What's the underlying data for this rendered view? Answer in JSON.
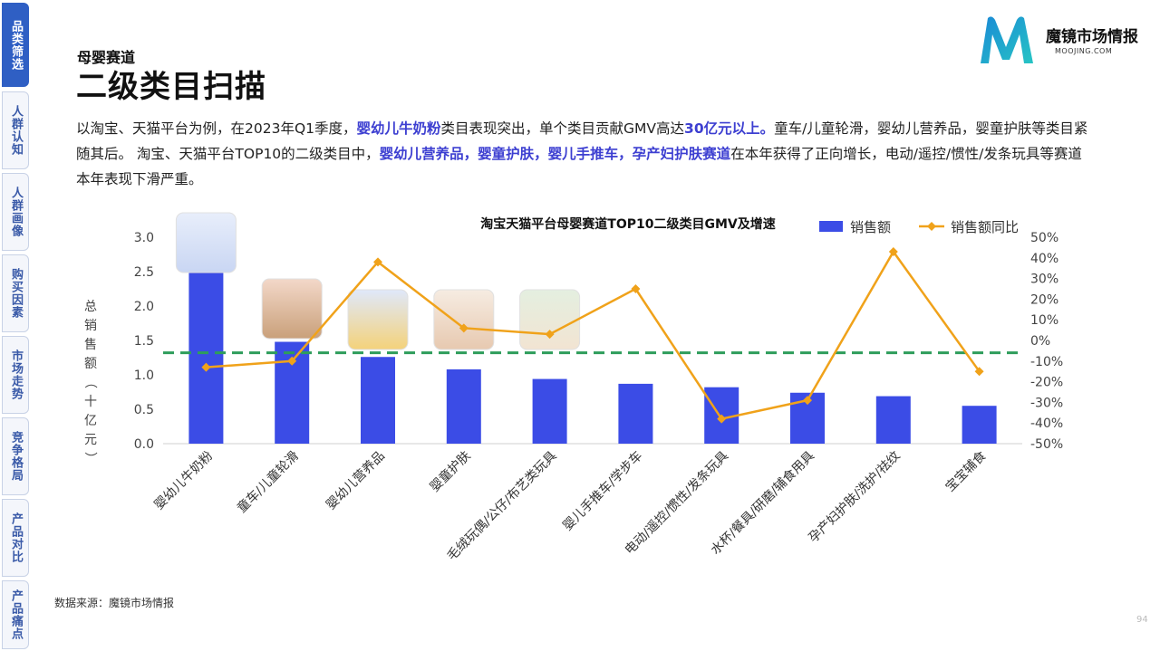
{
  "nav": {
    "items": [
      {
        "label": "品类筛选",
        "active": true
      },
      {
        "label": "人群认知",
        "active": false
      },
      {
        "label": "人群画像",
        "active": false
      },
      {
        "label": "购买因素",
        "active": false
      },
      {
        "label": "市场走势",
        "active": false
      },
      {
        "label": "竞争格局",
        "active": false
      },
      {
        "label": "产品对比",
        "active": false
      },
      {
        "label": "产品痛点",
        "active": false
      }
    ]
  },
  "header": {
    "section": "母婴赛道",
    "title": "二级类目扫描"
  },
  "logo": {
    "name": "魔镜市场情报",
    "sub": "MOOJING.COM",
    "colors": [
      "#1a9ad6",
      "#27c4c4"
    ]
  },
  "description": {
    "p1": "以淘宝、天猫平台为例，在2023年Q1季度，",
    "h1": "婴幼儿牛奶粉",
    "p2": "类目表现突出，单个类目贡献GMV高达",
    "h2": "30亿元以上。",
    "p3": "童车/儿童轮滑，婴幼儿营养品，婴童护肤等类目紧随其后。 淘宝、天猫平台TOP10的二级类目中，",
    "h3": "婴幼儿营养品，婴童护肤，婴儿手推车，孕产妇护肤赛道",
    "p4": "在本年获得了正向增长，电动/遥控/惯性/发条玩具等赛道本年表现下滑严重。"
  },
  "chart_data": {
    "type": "bar",
    "title": "淘宝天猫平台母婴赛道TOP10二级类目GMV及增速",
    "categories": [
      "婴幼儿牛奶粉",
      "童车/儿童轮滑",
      "婴幼儿营养品",
      "婴童护肤",
      "毛绒玩偶/公仔/布艺类玩具",
      "婴儿手推车/学步车",
      "电动/遥控/惯性/发条玩具",
      "水杯/餐具/研磨/辅食用具",
      "孕产妇护肤/洗护/祛纹",
      "宝宝辅食"
    ],
    "series": [
      {
        "name": "销售额",
        "type": "bar",
        "axis": "left",
        "color": "#3b4ce6",
        "values": [
          3.05,
          1.48,
          1.26,
          1.08,
          0.94,
          0.87,
          0.82,
          0.74,
          0.69,
          0.55
        ]
      },
      {
        "name": "销售额同比",
        "type": "line",
        "axis": "right",
        "color": "#f0a21a",
        "values": [
          -13,
          -10,
          38,
          6,
          3,
          25,
          -38,
          -29,
          43,
          -15
        ]
      }
    ],
    "ylabel": "总销售额（十亿元）",
    "ylim": [
      0,
      3.0
    ],
    "yticks": [
      "0.0",
      "0.5",
      "1.0",
      "1.5",
      "2.0",
      "2.5",
      "3.0"
    ],
    "y2lim": [
      -50,
      50
    ],
    "y2ticks": [
      "-50%",
      "-40%",
      "-30%",
      "-20%",
      "-10%",
      "0%",
      "10%",
      "20%",
      "30%",
      "40%",
      "50%"
    ],
    "reference_line": {
      "value": -6,
      "axis": "right",
      "color": "#2e9d5b",
      "style": "dashed"
    },
    "legend_position": "top-right",
    "grid": false
  },
  "source": "数据来源：魔镜市场情报",
  "page_number": "94"
}
